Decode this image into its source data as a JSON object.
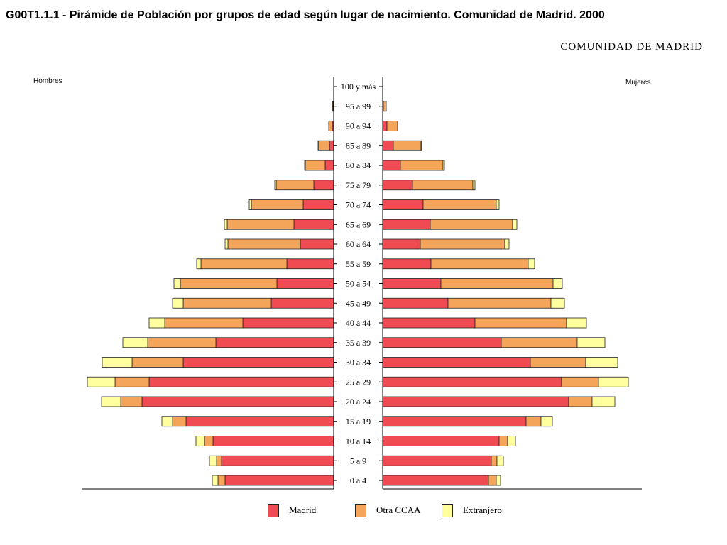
{
  "header": {
    "title": "G00T1.1.1 - Pirámide de Población por grupos de edad según lugar de nacimiento. Comunidad de Madrid. 2000",
    "subtitle": "COMUNIDAD DE MADRID"
  },
  "colors": {
    "madrid": "#f04a52",
    "otra_ccaa": "#f5a55a",
    "extranjero": "#ffffa0",
    "outline": "#222222"
  },
  "chart_data": {
    "type": "bar",
    "orientation": "horizontal-population-pyramid",
    "left_label": "Hombres",
    "right_label": "Mujeres",
    "categories": [
      "0 a 4",
      "5 a 9",
      "10 a 14",
      "15 a 19",
      "20 a 24",
      "25 a 29",
      "30 a 34",
      "35 a 39",
      "40 a 44",
      "45 a 49",
      "50 a 54",
      "55 a 59",
      "60 a 64",
      "65 a 69",
      "70 a 74",
      "75 a 79",
      "80 a 84",
      "85 a 89",
      "90 a 94",
      "95 a 99",
      "100 y más"
    ],
    "series": [
      {
        "name": "Madrid",
        "hombres": [
          153,
          158,
          170,
          208,
          270,
          260,
          212,
          166,
          128,
          88,
          80,
          66,
          47,
          56,
          43,
          28,
          12,
          6,
          2,
          1,
          0
        ],
        "mujeres": [
          149,
          153,
          164,
          202,
          262,
          252,
          208,
          167,
          130,
          92,
          82,
          68,
          53,
          67,
          57,
          42,
          25,
          15,
          6,
          1,
          0
        ]
      },
      {
        "name": "Otra CCAA",
        "hombres": [
          10,
          7,
          12,
          19,
          30,
          48,
          72,
          96,
          110,
          124,
          136,
          121,
          102,
          94,
          73,
          53,
          28,
          15,
          5,
          1,
          0
        ],
        "mujeres": [
          11,
          8,
          12,
          21,
          33,
          52,
          78,
          107,
          129,
          145,
          158,
          137,
          119,
          116,
          103,
          85,
          60,
          39,
          15,
          4,
          0
        ]
      },
      {
        "name": "Extranjero",
        "hombres": [
          8,
          10,
          12,
          15,
          27,
          39,
          42,
          35,
          22,
          15,
          9,
          6,
          4,
          4,
          3,
          2,
          1,
          1,
          0,
          0,
          0
        ],
        "mujeres": [
          6,
          9,
          11,
          16,
          32,
          42,
          45,
          39,
          28,
          19,
          13,
          9,
          6,
          6,
          4,
          3,
          2,
          1,
          0,
          0,
          0
        ]
      }
    ],
    "grid": false,
    "legend_position": "bottom"
  }
}
